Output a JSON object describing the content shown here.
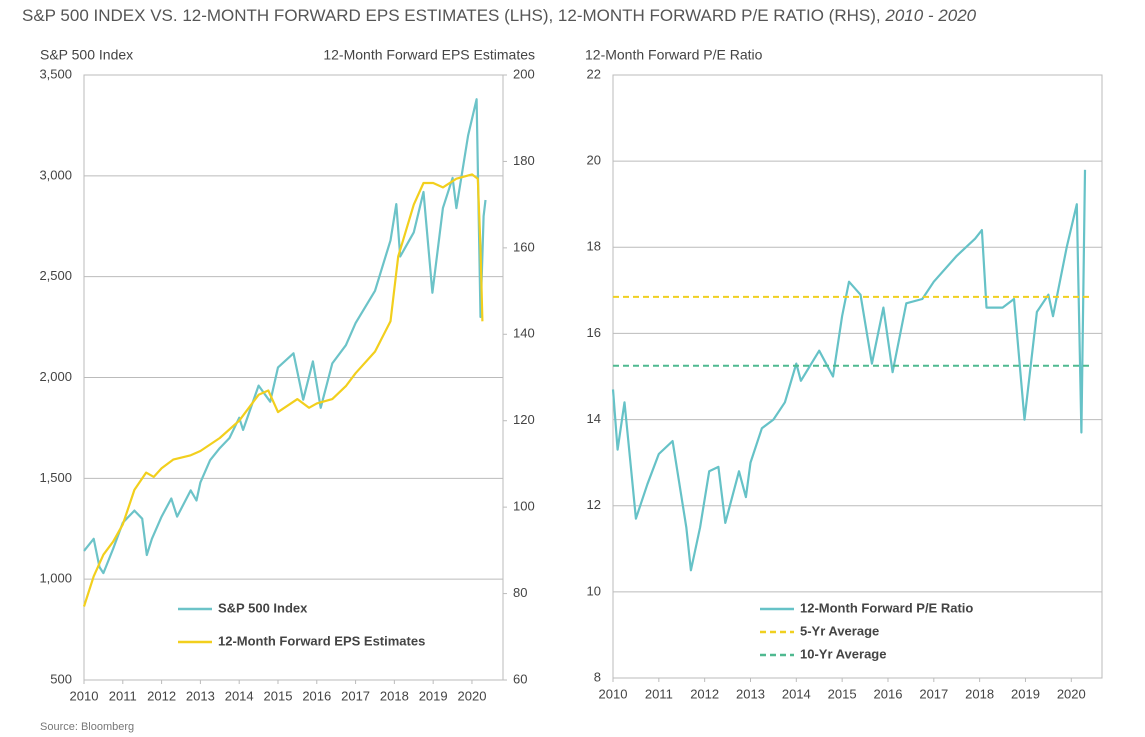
{
  "title": "S&P 500 INDEX VS. 12-MONTH FORWARD EPS ESTIMATES (LHS), 12-MONTH FORWARD P/E RATIO (RHS), ",
  "title_years": "2010 - 2020",
  "source": "Source: Bloomberg",
  "chart_data": [
    {
      "type": "line",
      "ylabel": "S&P 500 Index",
      "y2label": "12-Month Forward EPS Estimates",
      "xlim": [
        2010,
        2020.8
      ],
      "xticks": [
        2010,
        2011,
        2012,
        2013,
        2014,
        2015,
        2016,
        2017,
        2018,
        2019,
        2020
      ],
      "ylim": [
        500,
        3500
      ],
      "yticks": [
        500,
        {
          "value": 1000,
          "label": "1,000"
        },
        {
          "value": 1500,
          "label": "1,500"
        },
        {
          "value": 2000,
          "label": "2,000"
        },
        {
          "value": 2500,
          "label": "2,500"
        },
        {
          "value": 3000,
          "label": "3,000"
        },
        {
          "value": 3500,
          "label": "3,500"
        }
      ],
      "y2lim": [
        60,
        200
      ],
      "y2ticks": [
        60,
        80,
        100,
        120,
        140,
        160,
        180,
        200
      ],
      "grid": true,
      "legend": "lower-left",
      "series": [
        {
          "name": "S&P 500 Index",
          "color": "#6cc3c8",
          "x": [
            2010.0,
            2010.25,
            2010.4,
            2010.5,
            2010.75,
            2011.0,
            2011.3,
            2011.5,
            2011.62,
            2011.75,
            2012.0,
            2012.25,
            2012.4,
            2012.75,
            2012.9,
            2013.0,
            2013.25,
            2013.5,
            2013.75,
            2014.0,
            2014.1,
            2014.5,
            2014.8,
            2015.0,
            2015.4,
            2015.65,
            2015.9,
            2016.1,
            2016.4,
            2016.75,
            2017.0,
            2017.5,
            2017.9,
            2018.05,
            2018.15,
            2018.5,
            2018.75,
            2018.98,
            2019.25,
            2019.5,
            2019.6,
            2019.9,
            2020.12,
            2020.22,
            2020.3,
            2020.35
          ],
          "values": [
            1140,
            1200,
            1060,
            1030,
            1150,
            1280,
            1340,
            1300,
            1120,
            1200,
            1310,
            1400,
            1310,
            1440,
            1390,
            1480,
            1590,
            1650,
            1700,
            1800,
            1740,
            1960,
            1880,
            2050,
            2120,
            1890,
            2080,
            1850,
            2070,
            2160,
            2270,
            2430,
            2680,
            2860,
            2600,
            2720,
            2920,
            2420,
            2840,
            2990,
            2840,
            3200,
            3380,
            2300,
            2800,
            2880
          ]
        },
        {
          "name": "12-Month Forward EPS Estimates",
          "color": "#f2cf1d",
          "axis": "y2",
          "x": [
            2010.0,
            2010.25,
            2010.5,
            2010.75,
            2011.0,
            2011.3,
            2011.6,
            2011.8,
            2012.0,
            2012.3,
            2012.75,
            2013.0,
            2013.5,
            2014.0,
            2014.5,
            2014.75,
            2015.0,
            2015.5,
            2015.8,
            2016.0,
            2016.4,
            2016.75,
            2017.0,
            2017.5,
            2017.9,
            2018.1,
            2018.5,
            2018.75,
            2019.0,
            2019.25,
            2019.6,
            2020.0,
            2020.15,
            2020.22,
            2020.27
          ],
          "values": [
            77,
            84,
            89,
            92,
            96,
            104,
            108,
            107,
            109,
            111,
            112,
            113,
            116,
            120,
            126,
            127,
            122,
            125,
            123,
            124,
            125,
            128,
            131,
            136,
            143,
            158,
            170,
            175,
            175,
            174,
            176,
            177,
            176,
            160,
            143
          ]
        }
      ]
    },
    {
      "type": "line",
      "ylabel": "12-Month Forward P/E Ratio",
      "xlim": [
        2010,
        2020.67
      ],
      "xticks": [
        2010,
        2011,
        2012,
        2013,
        2014,
        2015,
        2016,
        2017,
        2018,
        2019,
        2020
      ],
      "ylim": [
        8,
        22
      ],
      "yticks": [
        8,
        10,
        12,
        14,
        16,
        18,
        20,
        22
      ],
      "grid": true,
      "legend": "lower-center",
      "series": [
        {
          "name": "12-Month Forward P/E Ratio",
          "color": "#66c2c7",
          "x": [
            2010.0,
            2010.1,
            2010.25,
            2010.4,
            2010.5,
            2010.75,
            2011.0,
            2011.3,
            2011.6,
            2011.7,
            2011.9,
            2012.1,
            2012.3,
            2012.45,
            2012.75,
            2012.9,
            2013.0,
            2013.25,
            2013.5,
            2013.75,
            2014.0,
            2014.1,
            2014.5,
            2014.8,
            2015.0,
            2015.15,
            2015.4,
            2015.65,
            2015.9,
            2016.1,
            2016.4,
            2016.75,
            2017.0,
            2017.5,
            2017.9,
            2018.05,
            2018.15,
            2018.5,
            2018.75,
            2018.98,
            2019.25,
            2019.5,
            2019.6,
            2019.9,
            2020.12,
            2020.22,
            2020.3
          ],
          "values": [
            14.7,
            13.3,
            14.4,
            12.8,
            11.7,
            12.5,
            13.2,
            13.5,
            11.5,
            10.5,
            11.5,
            12.8,
            12.9,
            11.6,
            12.8,
            12.2,
            13.0,
            13.8,
            14.0,
            14.4,
            15.3,
            14.9,
            15.6,
            15.0,
            16.4,
            17.2,
            16.9,
            15.3,
            16.6,
            15.1,
            16.7,
            16.8,
            17.2,
            17.8,
            18.2,
            18.4,
            16.6,
            16.6,
            16.8,
            14.0,
            16.5,
            16.9,
            16.4,
            18.0,
            19.0,
            13.7,
            19.8
          ]
        }
      ],
      "reference_lines": [
        {
          "name": "5-Yr Average",
          "color": "#f0d020",
          "value": 16.85,
          "dashed": true
        },
        {
          "name": "10-Yr Average",
          "color": "#4fb990",
          "value": 15.25,
          "dashed": true
        }
      ]
    }
  ]
}
